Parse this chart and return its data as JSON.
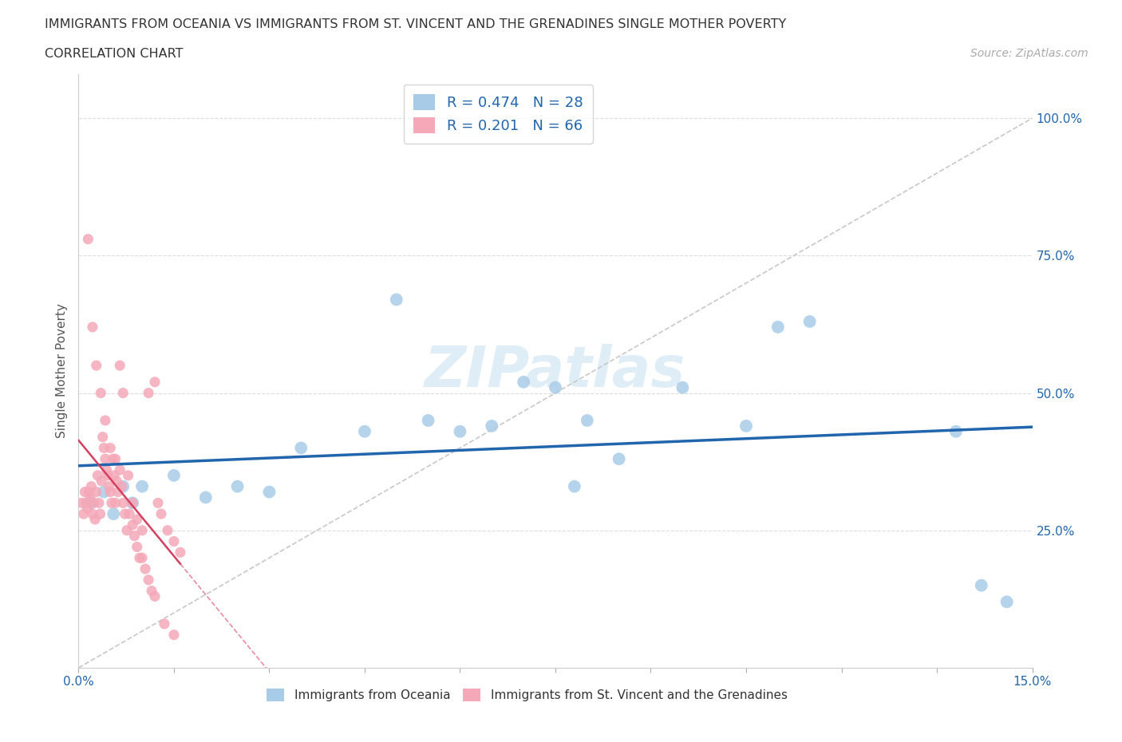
{
  "title_line1": "IMMIGRANTS FROM OCEANIA VS IMMIGRANTS FROM ST. VINCENT AND THE GRENADINES SINGLE MOTHER POVERTY",
  "title_line2": "CORRELATION CHART",
  "source_text": "Source: ZipAtlas.com",
  "ylabel": "Single Mother Poverty",
  "watermark": "ZIPatlas",
  "legend_r1": "R = 0.474",
  "legend_n1": "N = 28",
  "legend_r2": "R = 0.201",
  "legend_n2": "N = 66",
  "color_blue": "#a8cce8",
  "color_pink": "#f4a8b8",
  "color_blue_line": "#2166ac",
  "color_pink_line": "#d44060",
  "color_gray_dashed": "#c8c8c8",
  "oceania_x": [
    0.2,
    0.4,
    0.55,
    0.7,
    0.85,
    1.0,
    1.5,
    2.0,
    2.5,
    3.0,
    3.5,
    4.5,
    5.5,
    6.0,
    6.5,
    7.0,
    7.5,
    8.0,
    8.5,
    9.5,
    10.5,
    11.0,
    11.5,
    13.8,
    14.2,
    14.6,
    5.0,
    7.8
  ],
  "oceania_y": [
    30,
    32,
    28,
    33,
    30,
    33,
    35,
    31,
    33,
    32,
    40,
    43,
    45,
    43,
    44,
    52,
    51,
    45,
    38,
    51,
    44,
    62,
    63,
    43,
    15,
    12,
    67,
    33
  ],
  "stvincent_x": [
    0.05,
    0.08,
    0.1,
    0.12,
    0.14,
    0.16,
    0.18,
    0.2,
    0.22,
    0.24,
    0.26,
    0.28,
    0.3,
    0.32,
    0.34,
    0.36,
    0.38,
    0.4,
    0.42,
    0.44,
    0.46,
    0.48,
    0.5,
    0.52,
    0.54,
    0.56,
    0.58,
    0.6,
    0.62,
    0.65,
    0.68,
    0.7,
    0.73,
    0.76,
    0.8,
    0.85,
    0.88,
    0.92,
    0.96,
    1.0,
    1.05,
    1.1,
    1.15,
    1.2,
    1.25,
    1.3,
    1.4,
    1.5,
    1.6,
    0.15,
    0.22,
    0.28,
    0.35,
    0.42,
    0.5,
    0.58,
    0.65,
    0.7,
    0.78,
    0.85,
    0.92,
    1.0,
    1.1,
    1.2,
    1.35,
    1.5
  ],
  "stvincent_y": [
    30,
    28,
    32,
    30,
    29,
    32,
    31,
    33,
    28,
    30,
    27,
    32,
    35,
    30,
    28,
    34,
    42,
    40,
    38,
    36,
    35,
    33,
    32,
    30,
    38,
    35,
    30,
    34,
    32,
    36,
    33,
    30,
    28,
    25,
    28,
    26,
    24,
    22,
    20,
    20,
    18,
    16,
    14,
    13,
    30,
    28,
    25,
    23,
    21,
    78,
    62,
    55,
    50,
    45,
    40,
    38,
    55,
    50,
    35,
    30,
    27,
    25,
    50,
    52,
    8,
    6
  ],
  "xlim": [
    0.0,
    15.0
  ],
  "ylim": [
    0.0,
    108.0
  ]
}
